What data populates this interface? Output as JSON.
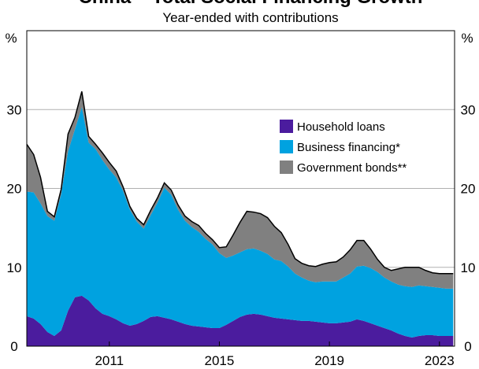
{
  "chart_data": {
    "type": "area",
    "stacked": true,
    "title": "China – Total Social Financing Growth",
    "subtitle": "Year-ended with contributions",
    "y_unit_left": "%",
    "y_unit_right": "%",
    "ylim": [
      0,
      40
    ],
    "y_ticks": [
      0,
      10,
      20,
      30
    ],
    "y_tick_labels": [
      "0",
      "10",
      "20",
      "30"
    ],
    "xlim": [
      2008.0,
      2023.55
    ],
    "x_ticks": [
      2011,
      2015,
      2019,
      2023
    ],
    "x_tick_labels": [
      "2011",
      "2015",
      "2019",
      "2023"
    ],
    "grid": true,
    "legend_position": "right",
    "x": [
      2008.0,
      2008.25,
      2008.5,
      2008.75,
      2009.0,
      2009.25,
      2009.5,
      2009.75,
      2010.0,
      2010.25,
      2010.5,
      2010.75,
      2011.0,
      2011.25,
      2011.5,
      2011.75,
      2012.0,
      2012.25,
      2012.5,
      2012.75,
      2013.0,
      2013.25,
      2013.5,
      2013.75,
      2014.0,
      2014.25,
      2014.5,
      2014.75,
      2015.0,
      2015.25,
      2015.5,
      2015.75,
      2016.0,
      2016.25,
      2016.5,
      2016.75,
      2017.0,
      2017.25,
      2017.5,
      2017.75,
      2018.0,
      2018.25,
      2018.5,
      2018.75,
      2019.0,
      2019.25,
      2019.5,
      2019.75,
      2020.0,
      2020.25,
      2020.5,
      2020.75,
      2021.0,
      2021.25,
      2021.5,
      2021.75,
      2022.0,
      2022.25,
      2022.5,
      2022.75,
      2023.0,
      2023.25,
      2023.5
    ],
    "series": [
      {
        "name": "Household loans",
        "color": "#4b1c9e",
        "values": [
          3.8,
          3.5,
          2.8,
          1.8,
          1.3,
          2.0,
          4.5,
          6.2,
          6.4,
          5.8,
          4.8,
          4.1,
          3.8,
          3.4,
          2.9,
          2.6,
          2.8,
          3.2,
          3.7,
          3.8,
          3.6,
          3.4,
          3.1,
          2.8,
          2.6,
          2.5,
          2.4,
          2.3,
          2.3,
          2.7,
          3.2,
          3.7,
          4.0,
          4.1,
          4.0,
          3.8,
          3.6,
          3.5,
          3.4,
          3.3,
          3.2,
          3.2,
          3.1,
          3.0,
          2.9,
          2.9,
          3.0,
          3.1,
          3.4,
          3.2,
          2.9,
          2.6,
          2.3,
          2.0,
          1.6,
          1.3,
          1.1,
          1.3,
          1.4,
          1.4,
          1.3,
          1.3,
          1.3
        ]
      },
      {
        "name": "Business financing*",
        "color": "#00a2e0",
        "values": [
          15.8,
          16.0,
          15.3,
          14.7,
          14.6,
          17.3,
          20.2,
          21.3,
          23.9,
          20.0,
          20.2,
          19.5,
          18.6,
          18.0,
          16.8,
          14.7,
          13.0,
          11.7,
          12.9,
          14.4,
          16.5,
          15.8,
          14.2,
          13.1,
          12.5,
          12.0,
          11.2,
          10.6,
          9.5,
          8.5,
          8.3,
          8.2,
          8.3,
          8.3,
          8.1,
          7.9,
          7.4,
          7.3,
          6.7,
          5.9,
          5.5,
          5.1,
          5.0,
          5.2,
          5.3,
          5.3,
          5.7,
          6.1,
          6.7,
          7.0,
          7.0,
          6.8,
          6.4,
          6.2,
          6.2,
          6.3,
          6.4,
          6.4,
          6.2,
          6.1,
          6.1,
          6.0,
          6.0
        ]
      },
      {
        "name": "Government bonds**",
        "color": "#808080",
        "values": [
          6.0,
          4.8,
          3.3,
          0.6,
          0.5,
          0.6,
          2.2,
          1.5,
          2.0,
          0.8,
          0.6,
          0.9,
          0.9,
          0.8,
          0.5,
          0.4,
          0.4,
          0.5,
          0.6,
          0.6,
          0.6,
          0.6,
          0.6,
          0.6,
          0.7,
          0.8,
          0.7,
          0.6,
          0.7,
          1.4,
          2.6,
          3.8,
          4.8,
          4.6,
          4.7,
          4.6,
          4.2,
          3.6,
          2.8,
          1.9,
          1.8,
          1.9,
          2.0,
          2.2,
          2.4,
          2.5,
          2.6,
          3.0,
          3.3,
          3.2,
          2.4,
          1.6,
          1.3,
          1.4,
          2.0,
          2.4,
          2.5,
          2.3,
          2.0,
          1.8,
          1.8,
          1.9,
          1.9
        ]
      }
    ]
  }
}
